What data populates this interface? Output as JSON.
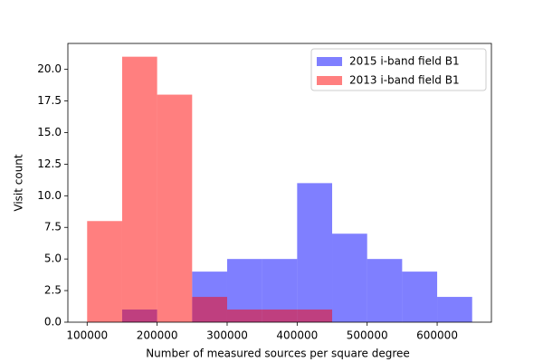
{
  "chart_data": {
    "type": "histogram",
    "x_label": "Number of measured sources per square degree",
    "y_label": "Visit count",
    "series": [
      {
        "name": "2015 i-band field B1",
        "color": "#0000ff",
        "alpha": 0.5,
        "bins": [
          150000,
          200000,
          250000,
          300000,
          350000,
          400000,
          450000,
          500000,
          550000,
          600000,
          650000
        ],
        "values": [
          1,
          0,
          4,
          5,
          5,
          11,
          7,
          5,
          4,
          2
        ]
      },
      {
        "name": "2013 i-band field B1",
        "color": "#ff0000",
        "alpha": 0.5,
        "bins": [
          100000,
          150000,
          200000,
          250000,
          300000,
          350000,
          400000,
          450000
        ],
        "values": [
          8,
          21,
          18,
          2,
          1,
          1,
          1
        ]
      }
    ],
    "xlim": [
      72500,
      677500
    ],
    "ylim": [
      0,
      22.05
    ],
    "xticks": [
      100000,
      200000,
      300000,
      400000,
      500000,
      600000
    ],
    "yticks": [
      {
        "value": 0,
        "label": "0.0"
      },
      {
        "value": 2.5,
        "label": "2.5"
      },
      {
        "value": 5,
        "label": "5.0"
      },
      {
        "value": 7.5,
        "label": "7.5"
      },
      {
        "value": 10,
        "label": "10.0"
      },
      {
        "value": 12.5,
        "label": "12.5"
      },
      {
        "value": 15,
        "label": "15.0"
      },
      {
        "value": 17.5,
        "label": "17.5"
      },
      {
        "value": 20,
        "label": "20.0"
      }
    ],
    "grid": false,
    "legend": "upper right"
  }
}
